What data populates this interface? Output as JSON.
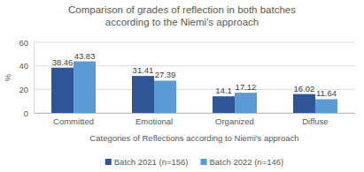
{
  "chart_data": {
    "type": "bar",
    "title": "Comparison of grades of reflection in both batches according to the Niemi's approach",
    "x_label": "Categories of Reflections according to Niemi's approach",
    "y_label": "%",
    "categories": [
      "Committed",
      "Emotional",
      "Organized",
      "Diffuse"
    ],
    "series": [
      {
        "name": "Batch 2021 (n=156)",
        "color": "#2f5597",
        "values": [
          38.46,
          31.41,
          14.1,
          16.02
        ]
      },
      {
        "name": "Batch 2022 (n=146)",
        "color": "#5b9bd5",
        "values": [
          43.83,
          27.39,
          17.12,
          11.64
        ]
      }
    ],
    "ylim": [
      0,
      60
    ],
    "yticks": [
      0,
      20,
      40,
      60
    ],
    "grid": true,
    "data_labels": true,
    "legend": "bottom"
  }
}
